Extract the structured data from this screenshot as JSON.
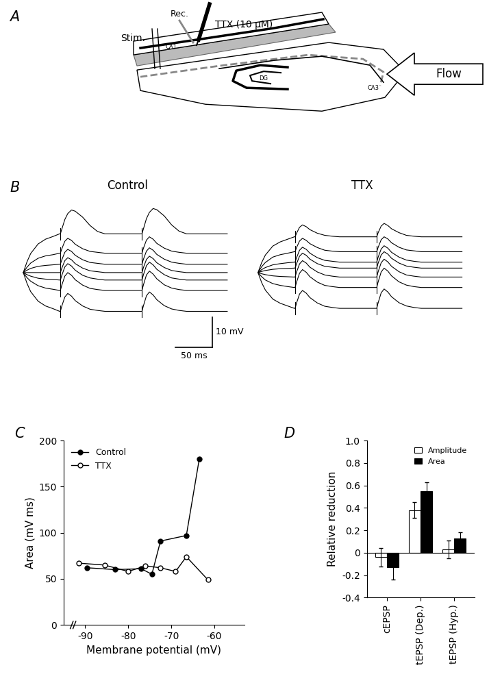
{
  "panel_labels": [
    "A",
    "B",
    "C",
    "D"
  ],
  "diagram": {
    "labels": {
      "stim": "Stim.",
      "rec": "Rec.",
      "drug": "TTX (10 μM)",
      "ca1": "CA1",
      "ca3": "CA3",
      "dg": "DG",
      "flow": "Flow"
    }
  },
  "traces": {
    "stimulus_times": [
      50,
      160
    ],
    "t": [
      0,
      5,
      10,
      20,
      30,
      40,
      49,
      50,
      52,
      56,
      60,
      65,
      70,
      80,
      90,
      100,
      110,
      120,
      130,
      140,
      150,
      159,
      160,
      162,
      166,
      170,
      175,
      180,
      190,
      200,
      210,
      220,
      230,
      245,
      260,
      275
    ],
    "panels": [
      {
        "title": "Control",
        "traces": [
          [
            0,
            3.6,
            6.4,
            9.6,
            11.2,
            12.1,
            13,
            13,
            14.6,
            17.8,
            19.8,
            21,
            20.6,
            18.6,
            15.8,
            13.8,
            13,
            13,
            13,
            13,
            13,
            13,
            13,
            14.7,
            18.1,
            20.2,
            21.5,
            21.1,
            19.0,
            16.0,
            13.9,
            13,
            13,
            13,
            13,
            13
          ],
          [
            0,
            1.8,
            3.2,
            4.8,
            5.6,
            6.0,
            6.5,
            6.5,
            8.0,
            10.5,
            11.5,
            10.8,
            9.5,
            8.0,
            7.1,
            6.8,
            6.5,
            6.5,
            6.5,
            6.5,
            6.5,
            6.5,
            6.5,
            8.2,
            10.9,
            12.0,
            11.2,
            9.8,
            8.2,
            7.2,
            6.8,
            6.5,
            6.5,
            6.5,
            6.5,
            6.5
          ],
          [
            0,
            0.8,
            1.4,
            2.1,
            2.4,
            2.6,
            2.8,
            2.8,
            4.3,
            6.8,
            7.8,
            7.1,
            5.8,
            4.3,
            3.4,
            3.1,
            2.8,
            2.8,
            2.8,
            2.8,
            2.8,
            2.8,
            2.8,
            4.5,
            7.2,
            8.3,
            7.5,
            6.1,
            4.5,
            3.5,
            3.1,
            2.8,
            2.8,
            2.8,
            2.8,
            2.8
          ],
          [
            0,
            0,
            0,
            0,
            0,
            0,
            0,
            0,
            1.5,
            4.0,
            5.0,
            4.3,
            3.0,
            1.5,
            0.6,
            0.3,
            0,
            0,
            0,
            0,
            0,
            0,
            0,
            1.7,
            4.4,
            5.5,
            4.7,
            3.3,
            1.7,
            0.7,
            0.3,
            0,
            0,
            0,
            0,
            0
          ],
          [
            0,
            -0.7,
            -1.2,
            -1.9,
            -2.2,
            -2.3,
            -2.5,
            -2.5,
            -0.9,
            1.9,
            3.0,
            2.2,
            0.8,
            -0.9,
            -1.8,
            -2.2,
            -2.5,
            -2.5,
            -2.5,
            -2.5,
            -2.5,
            -2.5,
            -2.5,
            -0.7,
            2.3,
            3.5,
            2.6,
            1.1,
            -0.7,
            -1.8,
            -2.2,
            -2.5,
            -2.5,
            -2.5,
            -2.5,
            -2.5
          ],
          [
            0,
            -1.7,
            -2.9,
            -4.4,
            -5.2,
            -5.6,
            -6,
            -6,
            -4.2,
            -1.2,
            0,
            -0.9,
            -2.4,
            -4.2,
            -5.3,
            -5.7,
            -6,
            -6,
            -6,
            -6,
            -6,
            -6,
            -6,
            -4.1,
            -0.8,
            0.5,
            -0.5,
            -2.1,
            -4.1,
            -5.2,
            -5.7,
            -6,
            -6,
            -6,
            -6,
            -6
          ],
          [
            0,
            -3.6,
            -6.4,
            -9.6,
            -11.2,
            -12.1,
            -13,
            -13,
            -11.2,
            -8.2,
            -7,
            -7.9,
            -9.4,
            -11.2,
            -12.3,
            -12.7,
            -13,
            -13,
            -13,
            -13,
            -13,
            -13,
            -13,
            -11.1,
            -7.8,
            -6.5,
            -7.5,
            -9.1,
            -11.1,
            -12.2,
            -12.7,
            -13,
            -13,
            -13,
            -13,
            -13
          ]
        ]
      },
      {
        "title": "TTX",
        "traces": [
          [
            0,
            3.4,
            5.9,
            8.9,
            10.3,
            11.2,
            12,
            12,
            13.2,
            15.2,
            16,
            15.4,
            14.4,
            13.2,
            12.5,
            12.2,
            12,
            12,
            12,
            12,
            12,
            12,
            12,
            13.4,
            15.6,
            16.5,
            15.8,
            14.7,
            13.4,
            12.5,
            12.2,
            12,
            12,
            12,
            12,
            12
          ],
          [
            0,
            2.0,
            3.4,
            5.2,
            6.0,
            6.5,
            7,
            7,
            8.4,
            10.6,
            11.5,
            10.8,
            9.7,
            8.4,
            7.5,
            7.2,
            7,
            7,
            7,
            7,
            7,
            7,
            7,
            8.5,
            11,
            12,
            11.3,
            10,
            8.5,
            7.6,
            7.3,
            7,
            7,
            7,
            7,
            7
          ],
          [
            0,
            1.0,
            1.7,
            2.6,
            3.0,
            3.3,
            3.5,
            3.5,
            5,
            7.5,
            8.5,
            7.8,
            6.5,
            5,
            4.1,
            3.8,
            3.5,
            3.5,
            3.5,
            3.5,
            3.5,
            3.5,
            3.5,
            5.2,
            7.9,
            9,
            8.2,
            6.8,
            5.2,
            4.2,
            3.8,
            3.5,
            3.5,
            3.5,
            3.5,
            3.5
          ],
          [
            0,
            0.4,
            0.7,
            1.1,
            1.3,
            1.4,
            1.5,
            1.5,
            3,
            5.5,
            6.5,
            5.8,
            4.5,
            3,
            2.1,
            1.8,
            1.5,
            1.5,
            1.5,
            1.5,
            1.5,
            1.5,
            1.5,
            3.2,
            5.9,
            7,
            6.2,
            4.8,
            3.2,
            2.2,
            1.8,
            1.5,
            1.5,
            1.5,
            1.5,
            1.5
          ],
          [
            0,
            -0.4,
            -0.7,
            -1.1,
            -1.3,
            -1.4,
            -1.5,
            -1.5,
            0.2,
            2.9,
            4,
            3.2,
            1.8,
            0.2,
            -0.8,
            -1.2,
            -1.5,
            -1.5,
            -1.5,
            -1.5,
            -1.5,
            -1.5,
            -1.5,
            0.3,
            3.3,
            4.5,
            3.6,
            2.1,
            0.3,
            -0.8,
            -1.2,
            -1.5,
            -1.5,
            -1.5,
            -1.5,
            -1.5
          ],
          [
            0,
            -1.4,
            -2.5,
            -3.7,
            -4.3,
            -4.7,
            -5,
            -5,
            -3.2,
            -0.2,
            1,
            0.1,
            -1.4,
            -3.2,
            -4.3,
            -4.7,
            -5,
            -5,
            -5,
            -5,
            -5,
            -5,
            -5,
            -3.1,
            0.2,
            1.5,
            0.5,
            -1.1,
            -3.1,
            -4.2,
            -4.7,
            -5,
            -5,
            -5,
            -5,
            -5
          ],
          [
            0,
            -3.4,
            -5.9,
            -8.9,
            -10.3,
            -11.2,
            -12,
            -12,
            -10.2,
            -7.2,
            -6,
            -6.9,
            -8.4,
            -10.2,
            -11.3,
            -11.7,
            -12,
            -12,
            -12,
            -12,
            -12,
            -12,
            -12,
            -10.1,
            -6.8,
            -5.5,
            -6.5,
            -8.1,
            -10.1,
            -11.2,
            -11.7,
            -12,
            -12,
            -12,
            -12,
            -12
          ]
        ]
      }
    ],
    "scale_bar": {
      "x": 50,
      "x_label": "50 ms",
      "y": 10,
      "y_label": "10 mV"
    }
  },
  "chart_data": [
    {
      "type": "line",
      "x_label": "Membrane potential (mV)",
      "y_label": "Area (mV ms)",
      "xlim": [
        -95,
        -53
      ],
      "xticks": [
        -90,
        -80,
        -70,
        -60
      ],
      "ylim": [
        0,
        200
      ],
      "yticks": [
        0,
        50,
        100,
        150,
        200
      ],
      "legend": "upper left",
      "series": [
        {
          "name": "Control",
          "color": "#000000",
          "marker": "filled_circle",
          "x": [
            -89.5,
            -83,
            -77,
            -74.5,
            -72.5,
            -66.5,
            -63.5
          ],
          "values": [
            62,
            60,
            61,
            55,
            91,
            97,
            180
          ]
        },
        {
          "name": "TTX",
          "color": "#000000",
          "marker": "open_circle",
          "x": [
            -91.5,
            -85.5,
            -80,
            -76,
            -72.5,
            -69,
            -66.5,
            -61.5
          ],
          "values": [
            67,
            65,
            58,
            64,
            62,
            58,
            74,
            49
          ]
        }
      ]
    },
    {
      "type": "bar",
      "y_label": "Relative reduction",
      "categories": [
        "cEPSP",
        "tEPSP (Dep.)",
        "tEPSP (Hyp.)"
      ],
      "ylim": [
        -0.4,
        1.0
      ],
      "yticks": [
        -0.4,
        -0.2,
        0,
        0.2,
        0.4,
        0.6,
        0.8,
        {
          "value": 1.0,
          "label": "1.0"
        }
      ],
      "legend": "upper right",
      "series": [
        {
          "name": "Amplitude",
          "color": "#ffffff",
          "values": [
            -0.04,
            0.38,
            0.03
          ],
          "errors": [
            0.08,
            0.07,
            0.08
          ]
        },
        {
          "name": "Area",
          "color": "#000000",
          "values": [
            -0.13,
            0.55,
            0.13
          ],
          "errors": [
            0.11,
            0.08,
            0.05
          ]
        }
      ]
    }
  ]
}
